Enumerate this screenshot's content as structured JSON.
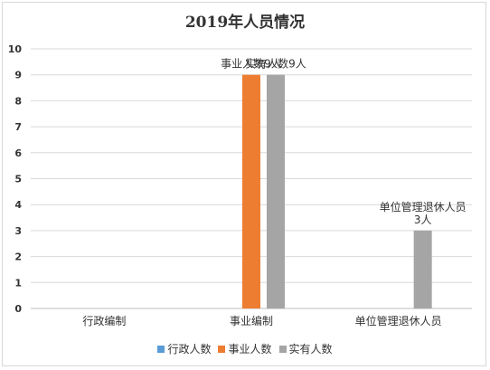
{
  "chart_data": {
    "type": "bar",
    "title": "2019年人员情况",
    "categories": [
      "行政编制",
      "事业编制",
      "单位管理退休人员"
    ],
    "series": [
      {
        "name": "行政人数",
        "color": "#5b9bd5",
        "values": [
          0,
          0,
          0
        ]
      },
      {
        "name": "事业人数",
        "color": "#ed7d31",
        "values": [
          0,
          9,
          0
        ]
      },
      {
        "name": "实有人数",
        "color": "#a5a5a5",
        "values": [
          0,
          9,
          3
        ]
      }
    ],
    "ylim": [
      0,
      10
    ],
    "yticks": [
      "0",
      "1",
      "2",
      "3",
      "4",
      "5",
      "6",
      "7",
      "8",
      "9",
      "10"
    ],
    "grid": true,
    "legend_position": "bottom",
    "data_labels": [
      {
        "category": 1,
        "series": 1,
        "lines": [
          "事业人数9人"
        ]
      },
      {
        "category": 1,
        "series": 2,
        "lines": [
          "实有人数9人"
        ]
      },
      {
        "category": 2,
        "series": 2,
        "lines": [
          "单位管理退休人员",
          "3人"
        ]
      }
    ]
  }
}
